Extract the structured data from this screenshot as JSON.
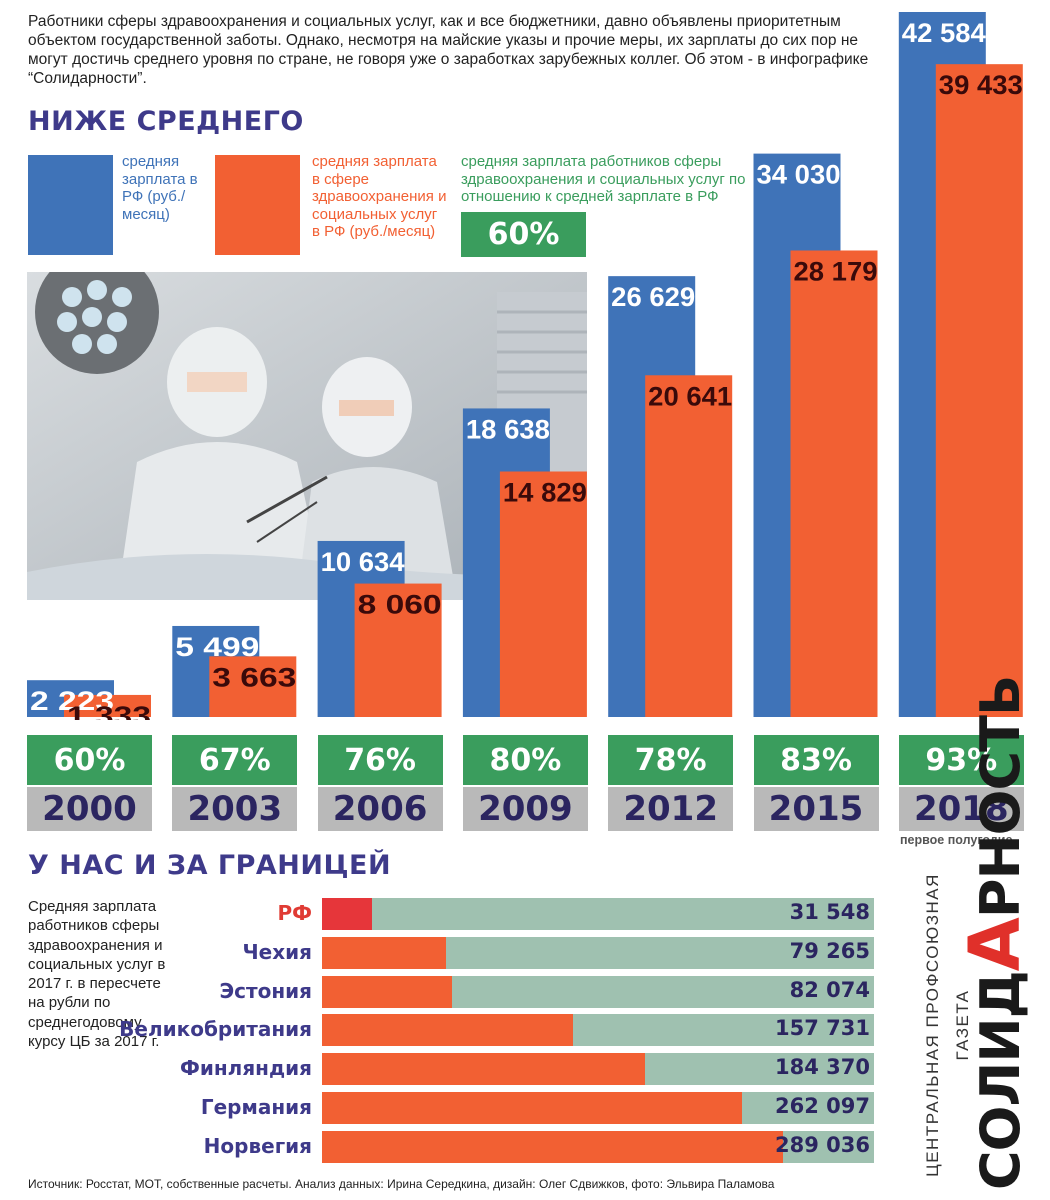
{
  "intro": "Работники сферы здравоохранения и социальных услуг, как и все бюджетники, давно объявлены приоритетным объектом государственной заботы. Однако, несмотря на майские указы и прочие меры, их зарплаты до сих пор не могут достичь среднего уровня по стране, не говоря уже о заработках зарубежных коллег. Об этом - в инфографике “Солидарности”.",
  "section1_title": "НИЖЕ СРЕДНЕГО",
  "legend": {
    "rf_text": "средняя зарплата в РФ (руб./месяц)",
    "health_text": "средняя зарплата в сфере здравоохранения и социальных услуг в РФ (руб./месяц)",
    "ratio_text": "средняя зарплата работников сферы здравоохранения и социальных услуг по отношению к средней зарплате в РФ",
    "ratio_example": "60%"
  },
  "colors": {
    "blue": "#3f73b8",
    "orange": "#f26033",
    "green": "#3a9d5d",
    "gray": "#b9b9b9",
    "navy": "#2b2560",
    "red": "#e6363a",
    "teal": "#9fc1b0"
  },
  "chart_data": [
    {
      "type": "bar",
      "categories": [
        "2000",
        "2003",
        "2006",
        "2009",
        "2012",
        "2015",
        "2018"
      ],
      "series": [
        {
          "name": "средняя зарплата в РФ (руб./месяц)",
          "values": [
            2223,
            5499,
            10634,
            18638,
            26629,
            34030,
            42584
          ],
          "labels": [
            "2 223",
            "5 499",
            "10 634",
            "18 638",
            "26 629",
            "34 030",
            "42 584"
          ]
        },
        {
          "name": "средняя зарплата в сфере здравоохранения и социальных услуг в РФ (руб./месяц)",
          "values": [
            1333,
            3663,
            8060,
            14829,
            20641,
            28179,
            39433
          ],
          "labels": [
            "1 333",
            "3 663",
            "8 060",
            "14 829",
            "20 641",
            "28 179",
            "39 433"
          ]
        }
      ],
      "ratios": [
        "60%",
        "67%",
        "76%",
        "80%",
        "78%",
        "83%",
        "93%"
      ],
      "year_note": "первое полугодие"
    },
    {
      "type": "bar",
      "orientation": "horizontal",
      "title": "У НАС И ЗА ГРАНИЦЕЙ",
      "categories": [
        "РФ",
        "Чехия",
        "Эстония",
        "Великобритания",
        "Финляндия",
        "Германия",
        "Норвегия"
      ],
      "values": [
        31548,
        79265,
        82074,
        157731,
        184370,
        262097,
        289036
      ],
      "labels": [
        "31 548",
        "79 265",
        "82 074",
        "157 731",
        "184 370",
        "262 097",
        "289 036"
      ],
      "filled_fraction": [
        0.09,
        0.225,
        0.235,
        0.455,
        0.585,
        0.76,
        0.835
      ]
    }
  ],
  "side_note": "Средняя зарплата работников сферы здравоохранения и социальных услуг в 2017 г. в пересчете на рубли по среднегодовому курсу ЦБ за 2017 г.",
  "source": "Источник: Росстат, МОТ, собственные расчеты. Анализ данных: Ирина Середкина, дизайн: Олег Сдвижков, фото: Эльвира Паламова",
  "brand": {
    "subtitle": "ЦЕНТРАЛЬНАЯ ПРОФСОЮЗНАЯ ГАЗЕТА",
    "name_part1": "СОЛИД",
    "name_highlight": "А",
    "name_part2": "РНОСТЬ"
  },
  "photo_icon": "surgeons-photo"
}
